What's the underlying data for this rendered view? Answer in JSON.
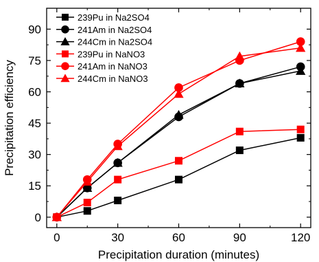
{
  "chart_data": {
    "type": "line",
    "xlabel": "Precipitation duration (minutes)",
    "ylabel": "Precipitation efficiency",
    "xlim": [
      -5,
      125
    ],
    "ylim": [
      -5,
      100
    ],
    "xticks": [
      0,
      30,
      60,
      90,
      120
    ],
    "yticks": [
      0,
      15,
      30,
      45,
      60,
      75,
      90
    ],
    "xtick_labels": [
      "0",
      "30",
      "60",
      "90",
      "120"
    ],
    "ytick_labels": [
      "0",
      "15",
      "30",
      "45",
      "60",
      "75",
      "90"
    ],
    "grid": false,
    "legend_position": "top-left",
    "x": [
      0,
      15,
      30,
      60,
      90,
      120
    ],
    "series": [
      {
        "name": "239Pu in Na2SO4",
        "color": "#000000",
        "marker": "square",
        "values": [
          0,
          3,
          8,
          18,
          32,
          38
        ]
      },
      {
        "name": "241Am in Na2SO4",
        "color": "#000000",
        "marker": "circle",
        "values": [
          0,
          14,
          26,
          48,
          64,
          72
        ]
      },
      {
        "name": "244Cm in Na2SO4",
        "color": "#000000",
        "marker": "triangle",
        "values": [
          0,
          14,
          26,
          49,
          64,
          70
        ]
      },
      {
        "name": "239Pu in NaNO3",
        "color": "#ff0000",
        "marker": "square",
        "values": [
          0,
          7,
          18,
          27,
          41,
          42
        ]
      },
      {
        "name": "241Am in NaNO3",
        "color": "#ff0000",
        "marker": "circle",
        "values": [
          0,
          18,
          35,
          62,
          75,
          84
        ]
      },
      {
        "name": "244Cm in NaNO3",
        "color": "#ff0000",
        "marker": "triangle",
        "values": [
          0,
          17,
          34,
          59,
          77,
          81
        ]
      }
    ]
  }
}
